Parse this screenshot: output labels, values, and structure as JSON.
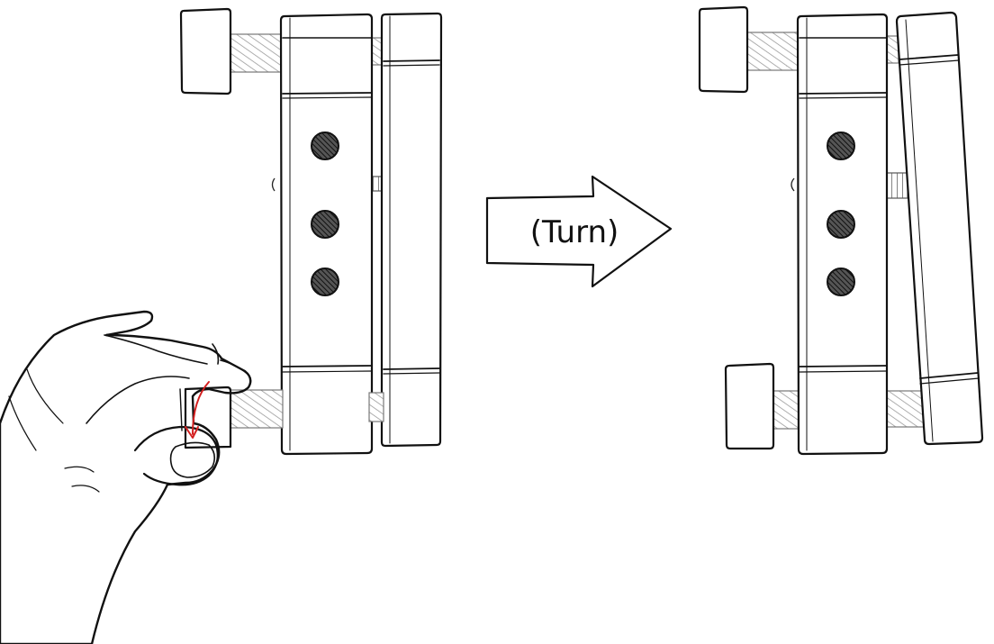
{
  "diagram": {
    "arrow_label": "(Turn)",
    "colors": {
      "ink": "#111111",
      "screw_thread": "#9a9a9a",
      "turn_indicator": "#d42020",
      "background": "#ffffff"
    },
    "icons": {
      "hand": "hand-turning-knob-icon",
      "turn": "curved-turn-arrow-icon"
    }
  }
}
